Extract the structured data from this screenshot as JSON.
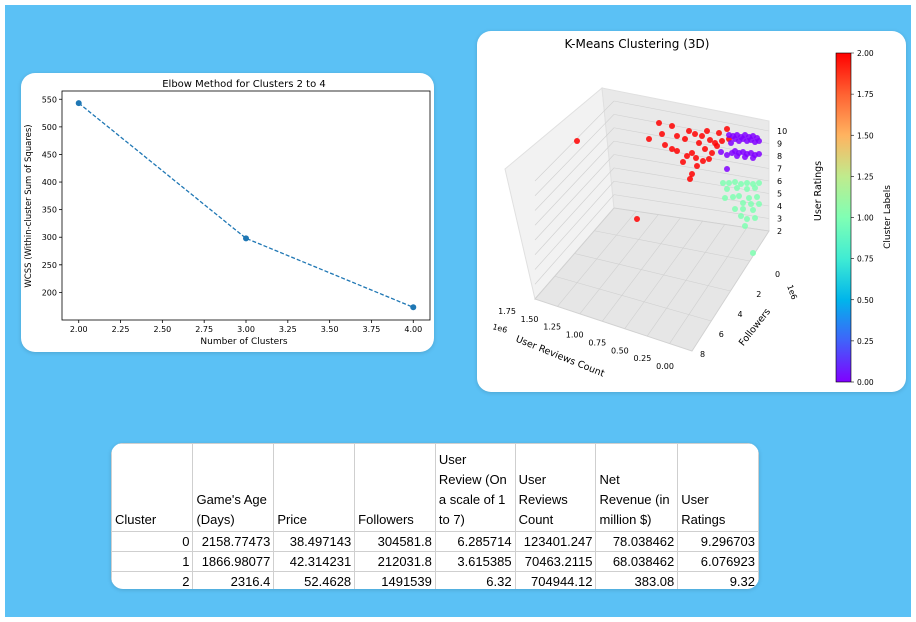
{
  "elbow_chart": {
    "chart_data": {
      "type": "line",
      "title": "Elbow Method for Clusters 2 to 4",
      "xlabel": "Number of Clusters",
      "ylabel": "WCSS (Within-cluster Sum of Squares)",
      "x": [
        2,
        3,
        4
      ],
      "y": [
        543,
        298,
        173
      ],
      "xlim": [
        1.9,
        4.1
      ],
      "ylim": [
        150,
        565
      ],
      "xticks": [
        "2.00",
        "2.25",
        "2.50",
        "2.75",
        "3.00",
        "3.25",
        "3.50",
        "3.75",
        "4.00"
      ],
      "yticks": [
        "200",
        "250",
        "300",
        "350",
        "400",
        "450",
        "500",
        "550"
      ],
      "line_style": "dashed",
      "color": "#1f77b4"
    }
  },
  "kmeans_chart": {
    "chart_data": {
      "type": "scatter",
      "title": "K-Means Clustering (3D)",
      "xlabel": "User Reviews Count",
      "ylabel": "Followers",
      "zlabel": "User Ratings",
      "x_ticks": [
        "1.75",
        "1.50",
        "1.25",
        "1.00",
        "0.75",
        "0.50",
        "0.25",
        "0.00"
      ],
      "x_offset": "1e6",
      "y_ticks": [
        "0",
        "2",
        "4",
        "6",
        "8"
      ],
      "y_offset": "1e6",
      "z_ticks": [
        "2",
        "3",
        "4",
        "5",
        "6",
        "7",
        "8",
        "9",
        "10"
      ],
      "colorbar_label": "Cluster Labels",
      "colorbar_ticks": [
        "0.00",
        "0.25",
        "0.50",
        "0.75",
        "1.00",
        "1.25",
        "1.50",
        "1.75",
        "2.00"
      ],
      "colormap": "rainbow",
      "clusters": [
        {
          "label": 0,
          "color": "#8000ff",
          "ratings_range": [
            8.5,
            10
          ]
        },
        {
          "label": 1,
          "color": "#7fffb2",
          "ratings_range": [
            2,
            7.5
          ]
        },
        {
          "label": 2,
          "color": "#ff0000",
          "ratings_range": [
            7,
            10
          ]
        }
      ]
    }
  },
  "summary_table": {
    "columns": [
      "Cluster",
      "Game's Age (Days)",
      "Price",
      "Followers",
      "User Review (On a scale of 1 to 7)",
      "User Reviews Count",
      "Net Revenue (in million $)",
      "User Ratings"
    ],
    "rows": [
      [
        "0",
        "2158.77473",
        "38.497143",
        "304581.8",
        "6.285714",
        "123401.247",
        "78.038462",
        "9.296703"
      ],
      [
        "1",
        "1866.98077",
        "42.314231",
        "212031.8",
        "3.615385",
        "70463.2115",
        "68.038462",
        "6.076923"
      ],
      [
        "2",
        "2316.4",
        "52.4628",
        "1491539",
        "6.32",
        "704944.12",
        "383.08",
        "9.32"
      ]
    ]
  }
}
